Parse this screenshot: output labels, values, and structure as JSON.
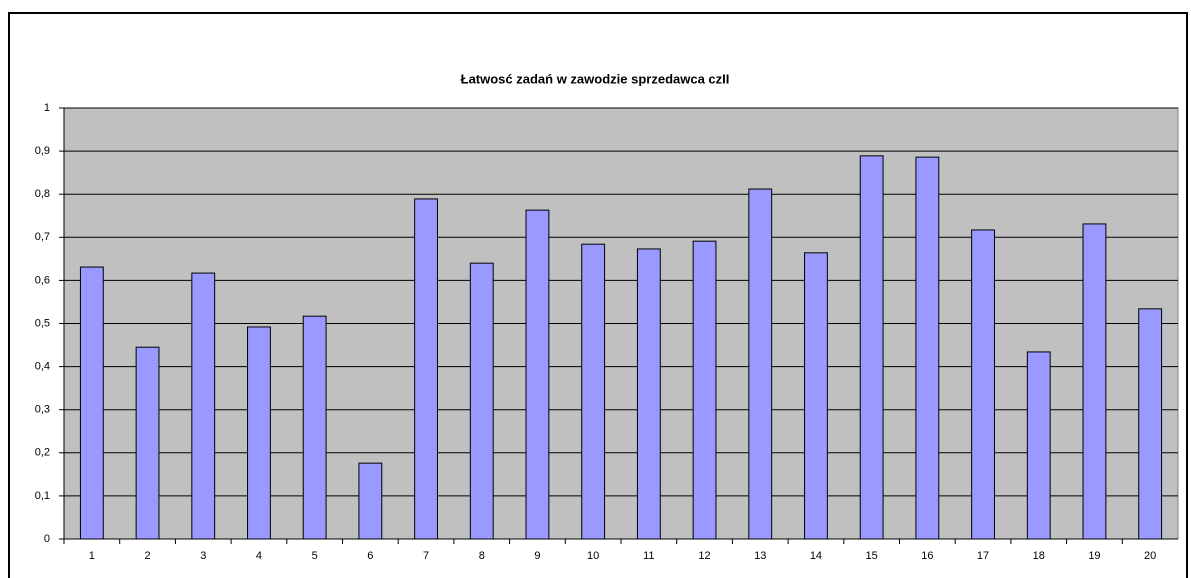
{
  "chart_data": {
    "type": "bar",
    "title": "Łatwosć zadań w zawodzie sprzedawca czII",
    "categories": [
      "1",
      "2",
      "3",
      "4",
      "5",
      "6",
      "7",
      "8",
      "9",
      "10",
      "11",
      "12",
      "13",
      "14",
      "15",
      "16",
      "17",
      "18",
      "19",
      "20"
    ],
    "values": [
      0.631,
      0.445,
      0.617,
      0.492,
      0.517,
      0.176,
      0.789,
      0.64,
      0.763,
      0.684,
      0.673,
      0.691,
      0.812,
      0.664,
      0.889,
      0.886,
      0.717,
      0.434,
      0.731,
      0.534
    ],
    "color": "#9999ff",
    "ylim": [
      0,
      1
    ],
    "yticks": [
      0,
      {
        "value": 0.1,
        "label": "0,1"
      },
      {
        "value": 0.2,
        "label": "0,2"
      },
      {
        "value": 0.3,
        "label": "0,3"
      },
      {
        "value": 0.4,
        "label": "0,4"
      },
      {
        "value": 0.5,
        "label": "0,5"
      },
      {
        "value": 0.6,
        "label": "0,6"
      },
      {
        "value": 0.7,
        "label": "0,7"
      },
      {
        "value": 0.8,
        "label": "0,8"
      },
      {
        "value": 0.9,
        "label": "0,9"
      },
      1
    ],
    "grid": true
  }
}
